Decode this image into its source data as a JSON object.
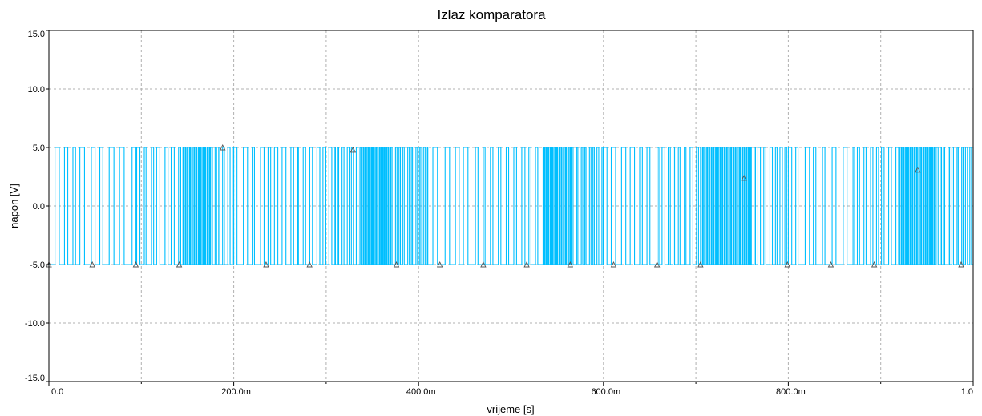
{
  "chart_data": {
    "type": "line",
    "title": "Izlaz komparatora",
    "xlabel": "vrijeme [s]",
    "ylabel": "napon [V]",
    "xlim": [
      0,
      1.0
    ],
    "ylim": [
      -15,
      15
    ],
    "x_ticks": [
      0,
      0.2,
      0.4,
      0.6,
      0.8,
      1.0
    ],
    "x_tick_labels": [
      "0.0",
      "200.0m",
      "400.0m",
      "600.0m",
      "800.0m",
      "1.0"
    ],
    "x_minor_ticks": [
      0.1,
      0.3,
      0.5,
      0.7,
      0.9
    ],
    "y_ticks": [
      15,
      10,
      5,
      0,
      -5,
      -10,
      -15
    ],
    "y_tick_labels": [
      "15.0",
      "10.0",
      "5.0",
      "0.0",
      "-5.0",
      "-10.0",
      "-15.0"
    ],
    "grid": true,
    "series": [
      {
        "color": "#00bfff",
        "high": 5.0,
        "low": -5.0,
        "segments": [
          {
            "x_start": 0.0,
            "x_end": 0.095,
            "toggle_period": 0.0066
          },
          {
            "x_start": 0.095,
            "x_end": 0.145,
            "toggle_period": 0.0045
          },
          {
            "x_start": 0.145,
            "x_end": 0.175,
            "toggle_period": 0.0012
          },
          {
            "x_start": 0.175,
            "x_end": 0.2,
            "toggle_period": 0.0032
          },
          {
            "x_start": 0.2,
            "x_end": 0.27,
            "toggle_period": 0.0058
          },
          {
            "x_start": 0.27,
            "x_end": 0.31,
            "toggle_period": 0.004
          },
          {
            "x_start": 0.31,
            "x_end": 0.34,
            "toggle_period": 0.0028
          },
          {
            "x_start": 0.34,
            "x_end": 0.37,
            "toggle_period": 0.0011
          },
          {
            "x_start": 0.37,
            "x_end": 0.41,
            "toggle_period": 0.003
          },
          {
            "x_start": 0.41,
            "x_end": 0.47,
            "toggle_period": 0.0065
          },
          {
            "x_start": 0.47,
            "x_end": 0.535,
            "toggle_period": 0.0045
          },
          {
            "x_start": 0.535,
            "x_end": 0.565,
            "toggle_period": 0.0012
          },
          {
            "x_start": 0.565,
            "x_end": 0.6,
            "toggle_period": 0.003
          },
          {
            "x_start": 0.6,
            "x_end": 0.66,
            "toggle_period": 0.0062
          },
          {
            "x_start": 0.66,
            "x_end": 0.705,
            "toggle_period": 0.004
          },
          {
            "x_start": 0.705,
            "x_end": 0.76,
            "toggle_period": 0.0012
          },
          {
            "x_start": 0.76,
            "x_end": 0.8,
            "toggle_period": 0.0035
          },
          {
            "x_start": 0.8,
            "x_end": 0.87,
            "toggle_period": 0.006
          },
          {
            "x_start": 0.87,
            "x_end": 0.92,
            "toggle_period": 0.0038
          },
          {
            "x_start": 0.92,
            "x_end": 0.96,
            "toggle_period": 0.0012
          },
          {
            "x_start": 0.96,
            "x_end": 1.0,
            "toggle_period": 0.003
          }
        ],
        "markers": [
          {
            "x": 0.0,
            "y": -5.0
          },
          {
            "x": 0.047,
            "y": -5.0
          },
          {
            "x": 0.094,
            "y": -5.0
          },
          {
            "x": 0.141,
            "y": -5.0
          },
          {
            "x": 0.188,
            "y": 5.0
          },
          {
            "x": 0.235,
            "y": -5.0
          },
          {
            "x": 0.282,
            "y": -5.0
          },
          {
            "x": 0.329,
            "y": 4.8
          },
          {
            "x": 0.376,
            "y": -5.0
          },
          {
            "x": 0.423,
            "y": -5.0
          },
          {
            "x": 0.47,
            "y": -5.0
          },
          {
            "x": 0.517,
            "y": -5.0
          },
          {
            "x": 0.564,
            "y": -5.0
          },
          {
            "x": 0.611,
            "y": -5.0
          },
          {
            "x": 0.658,
            "y": -5.0
          },
          {
            "x": 0.705,
            "y": -5.0
          },
          {
            "x": 0.752,
            "y": 2.4
          },
          {
            "x": 0.799,
            "y": -5.0
          },
          {
            "x": 0.846,
            "y": -5.0
          },
          {
            "x": 0.893,
            "y": -5.0
          },
          {
            "x": 0.94,
            "y": 3.1
          },
          {
            "x": 0.987,
            "y": -5.0
          }
        ]
      }
    ]
  }
}
